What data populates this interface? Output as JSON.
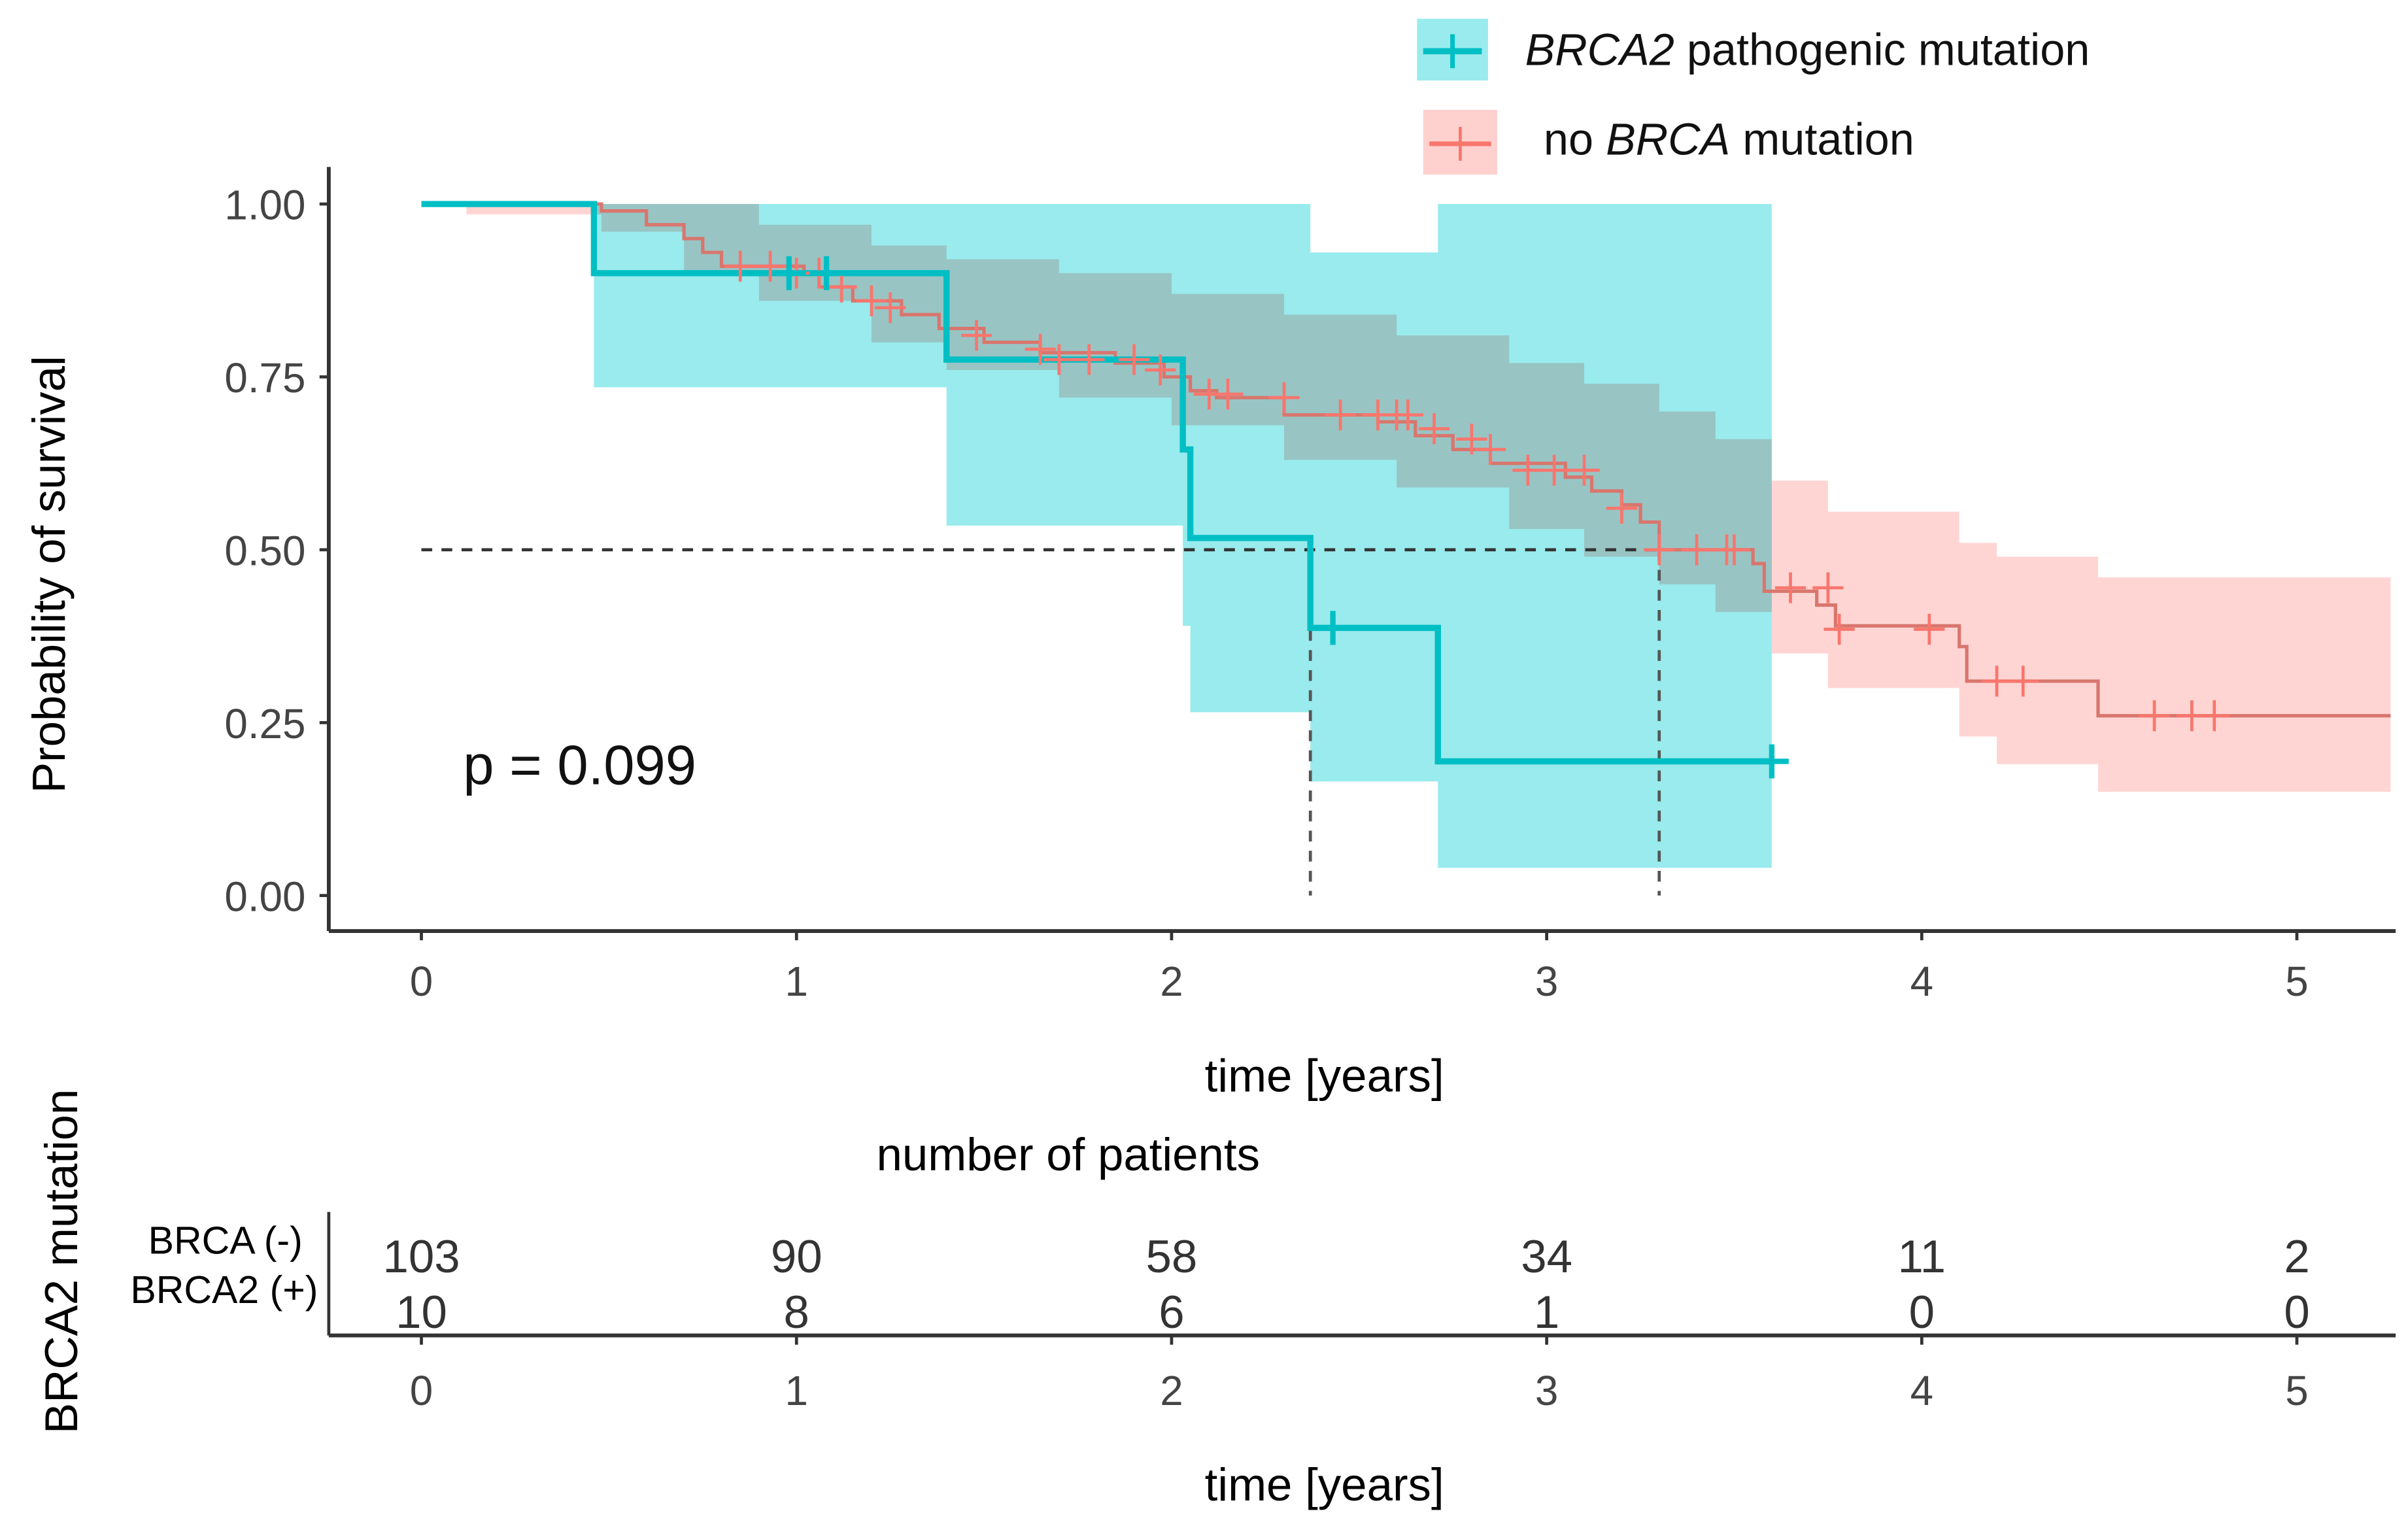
{
  "chart_data": {
    "type": "line",
    "subtype": "kaplan-meier",
    "xlabel": "time [years]",
    "ylabel": "Probability of survival",
    "xlim": [
      -0.25,
      5.25
    ],
    "ylim": [
      0,
      1
    ],
    "x_ticks": [
      "0",
      "1",
      "2",
      "3",
      "4",
      "5"
    ],
    "y_ticks": [
      "0.00",
      "0.25",
      "0.50",
      "0.75",
      "1.00"
    ],
    "annotation": "p = 0.099",
    "median_lines": {
      "y": 0.5,
      "x": [
        2.37,
        3.3
      ]
    },
    "legend": {
      "placement": "top-right",
      "items": [
        {
          "italic": "BRCA2",
          "suffix": " pathogenic mutation",
          "prefix": ""
        },
        {
          "prefix": "no ",
          "italic": "BRCA",
          "suffix": " mutation"
        }
      ]
    },
    "series": [
      {
        "name": "BRCA2 pathogenic mutation",
        "color": "#00BFC4",
        "ci_color": "#00CED1",
        "steps": [
          [
            0,
            1.0
          ],
          [
            0.46,
            0.9
          ],
          [
            1.4,
            0.775
          ],
          [
            2.03,
            0.645
          ],
          [
            2.05,
            0.517
          ],
          [
            2.37,
            0.387
          ],
          [
            2.71,
            0.194
          ],
          [
            3.6,
            0.194
          ]
        ],
        "ci": [
          [
            0,
            1.0,
            1.0
          ],
          [
            0.46,
            0.735,
            1.0
          ],
          [
            1.4,
            0.535,
            1.0
          ],
          [
            2.03,
            0.39,
            1.0
          ],
          [
            2.05,
            0.265,
            1.0
          ],
          [
            2.37,
            0.165,
            0.93
          ],
          [
            2.71,
            0.04,
            1.0
          ],
          [
            3.6,
            0.04,
            1.0
          ]
        ],
        "censored": [
          [
            0.98,
            0.9
          ],
          [
            1.08,
            0.9
          ],
          [
            2.43,
            0.387
          ],
          [
            3.6,
            0.194
          ]
        ]
      },
      {
        "name": "no BRCA mutation",
        "color": "#F8766D",
        "ci_color": "#FFB3AE",
        "steps": [
          [
            0,
            1.0
          ],
          [
            0.48,
            0.99
          ],
          [
            0.6,
            0.97
          ],
          [
            0.7,
            0.95
          ],
          [
            0.75,
            0.93
          ],
          [
            0.8,
            0.91
          ],
          [
            1.02,
            0.9
          ],
          [
            1.06,
            0.88
          ],
          [
            1.15,
            0.86
          ],
          [
            1.28,
            0.84
          ],
          [
            1.38,
            0.82
          ],
          [
            1.5,
            0.8
          ],
          [
            1.65,
            0.785
          ],
          [
            1.85,
            0.77
          ],
          [
            1.98,
            0.75
          ],
          [
            2.05,
            0.73
          ],
          [
            2.12,
            0.72
          ],
          [
            2.3,
            0.695
          ],
          [
            2.55,
            0.685
          ],
          [
            2.65,
            0.665
          ],
          [
            2.75,
            0.645
          ],
          [
            2.85,
            0.625
          ],
          [
            3.05,
            0.605
          ],
          [
            3.12,
            0.585
          ],
          [
            3.2,
            0.565
          ],
          [
            3.25,
            0.54
          ],
          [
            3.3,
            0.5
          ],
          [
            3.55,
            0.48
          ],
          [
            3.58,
            0.44
          ],
          [
            3.72,
            0.42
          ],
          [
            3.77,
            0.39
          ],
          [
            4.1,
            0.36
          ],
          [
            4.12,
            0.31
          ],
          [
            4.47,
            0.26
          ],
          [
            5.25,
            0.26
          ]
        ],
        "ci": [
          [
            0,
            1.0,
            1.0
          ],
          [
            0.12,
            0.985,
            1.0
          ],
          [
            0.48,
            0.96,
            1.0
          ],
          [
            0.7,
            0.9,
            1.0
          ],
          [
            0.9,
            0.86,
            0.97
          ],
          [
            1.2,
            0.8,
            0.94
          ],
          [
            1.4,
            0.76,
            0.92
          ],
          [
            1.7,
            0.72,
            0.9
          ],
          [
            2.0,
            0.68,
            0.87
          ],
          [
            2.3,
            0.63,
            0.84
          ],
          [
            2.6,
            0.59,
            0.81
          ],
          [
            2.9,
            0.53,
            0.77
          ],
          [
            3.1,
            0.49,
            0.74
          ],
          [
            3.3,
            0.45,
            0.7
          ],
          [
            3.45,
            0.41,
            0.66
          ],
          [
            3.6,
            0.35,
            0.6
          ],
          [
            3.75,
            0.3,
            0.555
          ],
          [
            4.1,
            0.23,
            0.51
          ],
          [
            4.2,
            0.19,
            0.49
          ],
          [
            4.47,
            0.15,
            0.46
          ],
          [
            5.25,
            0.15,
            0.46
          ]
        ],
        "censored": [
          [
            0.85,
            0.91
          ],
          [
            0.93,
            0.91
          ],
          [
            1.0,
            0.9
          ],
          [
            1.06,
            0.9
          ],
          [
            1.12,
            0.88
          ],
          [
            1.2,
            0.86
          ],
          [
            1.25,
            0.85
          ],
          [
            1.48,
            0.81
          ],
          [
            1.65,
            0.79
          ],
          [
            1.7,
            0.775
          ],
          [
            1.78,
            0.775
          ],
          [
            1.9,
            0.775
          ],
          [
            1.97,
            0.76
          ],
          [
            2.1,
            0.725
          ],
          [
            2.15,
            0.725
          ],
          [
            2.3,
            0.72
          ],
          [
            2.45,
            0.695
          ],
          [
            2.55,
            0.695
          ],
          [
            2.6,
            0.695
          ],
          [
            2.63,
            0.695
          ],
          [
            2.7,
            0.675
          ],
          [
            2.8,
            0.66
          ],
          [
            2.85,
            0.645
          ],
          [
            2.95,
            0.615
          ],
          [
            3.02,
            0.615
          ],
          [
            3.1,
            0.615
          ],
          [
            3.2,
            0.56
          ],
          [
            3.3,
            0.5
          ],
          [
            3.4,
            0.5
          ],
          [
            3.48,
            0.5
          ],
          [
            3.5,
            0.5
          ],
          [
            3.65,
            0.445
          ],
          [
            3.75,
            0.445
          ],
          [
            3.78,
            0.385
          ],
          [
            4.02,
            0.385
          ],
          [
            4.2,
            0.31
          ],
          [
            4.27,
            0.31
          ],
          [
            4.62,
            0.26
          ],
          [
            4.72,
            0.26
          ],
          [
            4.78,
            0.26
          ]
        ]
      }
    ],
    "risk_table": {
      "title": "number of patients",
      "ylabel": "BRCA2 mutation",
      "xlabel": "time [years]",
      "x_ticks": [
        "0",
        "1",
        "2",
        "3",
        "4",
        "5"
      ],
      "rows": [
        {
          "label": "BRCA (-)",
          "values": [
            "103",
            "90",
            "58",
            "34",
            "11",
            "2"
          ]
        },
        {
          "label": "BRCA2 (+)",
          "values": [
            "10",
            "8",
            "6",
            "1",
            "0",
            "0"
          ]
        }
      ]
    }
  }
}
